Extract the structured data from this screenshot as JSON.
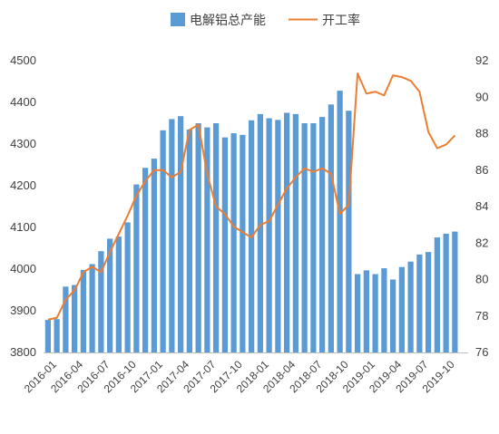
{
  "chart_data": {
    "type": "bar+line",
    "title": "",
    "xlabel": "",
    "ylabel_left": "",
    "ylabel_right": "",
    "legend_position": "top",
    "grid": false,
    "colors": {
      "bar": "#5B9BD5",
      "line": "#ED7D31",
      "axis": "#BFBFBF",
      "text": "#404040"
    },
    "months": [
      "2016-01",
      "2016-02",
      "2016-03",
      "2016-04",
      "2016-05",
      "2016-06",
      "2016-07",
      "2016-08",
      "2016-09",
      "2016-10",
      "2016-11",
      "2016-12",
      "2017-01",
      "2017-02",
      "2017-03",
      "2017-04",
      "2017-05",
      "2017-06",
      "2017-07",
      "2017-08",
      "2017-09",
      "2017-10",
      "2017-11",
      "2017-12",
      "2018-01",
      "2018-02",
      "2018-03",
      "2018-04",
      "2018-05",
      "2018-06",
      "2018-07",
      "2018-08",
      "2018-09",
      "2018-10",
      "2018-11",
      "2018-12",
      "2019-01",
      "2019-02",
      "2019-03",
      "2019-04",
      "2019-05",
      "2019-06",
      "2019-07",
      "2019-08",
      "2019-09",
      "2019-10",
      "2019-11",
      "2019-12"
    ],
    "x_tick_labels": [
      "2016-01",
      "2016-04",
      "2016-07",
      "2016-10",
      "2017-01",
      "2017-04",
      "2017-07",
      "2017-10",
      "2018-01",
      "2018-04",
      "2018-07",
      "2018-10",
      "2019-01",
      "2019-04",
      "2019-07",
      "2019-10"
    ],
    "left_axis": {
      "min": 3800,
      "max": 4500,
      "ticks": [
        3800,
        3900,
        4000,
        4100,
        4200,
        4300,
        4400,
        4500
      ]
    },
    "right_axis": {
      "min": 76,
      "max": 92,
      "ticks": [
        76,
        78,
        80,
        82,
        84,
        86,
        88,
        90,
        92
      ]
    },
    "series": [
      {
        "name": "电解铝总产能",
        "type": "bar",
        "axis": "left",
        "values": [
          3878,
          3880,
          3958,
          3962,
          3998,
          4012,
          4043,
          4073,
          4078,
          4112,
          4203,
          4243,
          4265,
          4333,
          4360,
          4367,
          4335,
          4350,
          4340,
          4350,
          4316,
          4326,
          4322,
          4357,
          4372,
          4362,
          4358,
          4375,
          4372,
          4350,
          4350,
          4365,
          4395,
          4428,
          4380,
          3988,
          3997,
          3988,
          4002,
          3975,
          4005,
          4018,
          4035,
          4041,
          4076,
          4085,
          4090,
          null
        ]
      },
      {
        "name": "开工率",
        "type": "line",
        "axis": "right",
        "values": [
          77.8,
          77.9,
          78.9,
          79.4,
          80.4,
          80.7,
          80.4,
          81.5,
          82.5,
          83.5,
          84.6,
          85.4,
          86.0,
          86.0,
          85.6,
          85.9,
          88.2,
          88.5,
          85.8,
          84.0,
          83.6,
          82.9,
          82.6,
          82.3,
          83.0,
          83.2,
          84.1,
          85.0,
          85.6,
          86.1,
          85.9,
          86.1,
          85.8,
          83.6,
          84.1,
          91.3,
          90.2,
          90.3,
          90.1,
          91.2,
          91.1,
          90.9,
          90.3,
          88.1,
          87.2,
          87.4,
          87.9,
          null
        ]
      }
    ]
  }
}
